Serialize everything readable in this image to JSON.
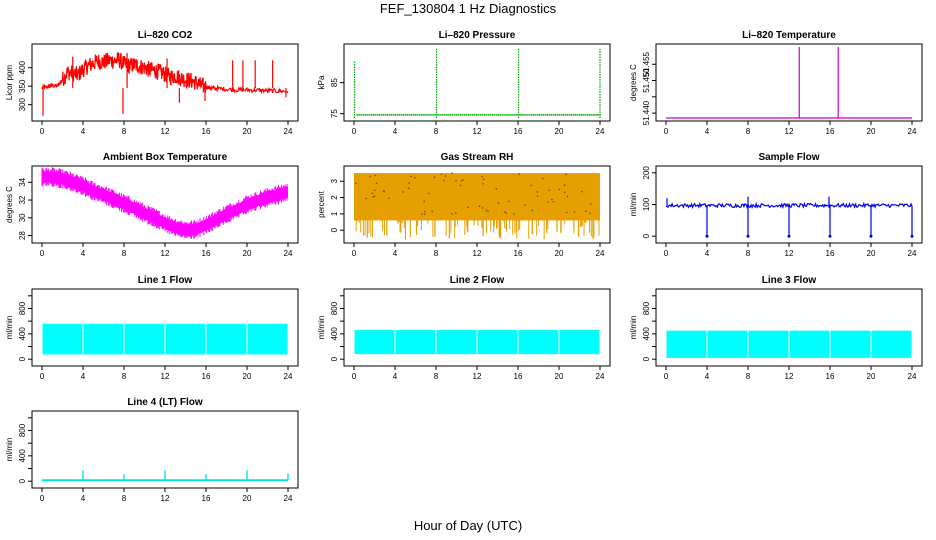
{
  "figure": {
    "title": "FEF_130804  1 Hz Diagnostics",
    "xlabel": "Hour of Day (UTC)"
  },
  "chart_data": [
    {
      "type": "line",
      "title": "Li–820 CO2",
      "ylabel": "Licor ppm",
      "xlim": [
        0,
        24
      ],
      "xticks": [
        0,
        4,
        8,
        12,
        16,
        20,
        24
      ],
      "ylim": [
        264,
        456
      ],
      "yticks": [
        300,
        350,
        400
      ],
      "color": "#ff0000",
      "style": "line",
      "series": [
        {
          "x": [
            0,
            0.5,
            1,
            1.5,
            2,
            2.5,
            3,
            3.5,
            4,
            4.5,
            5,
            5.5,
            6,
            6.5,
            7,
            7.5,
            8,
            8.5,
            9,
            9.5,
            10,
            10.5,
            11,
            11.5,
            12,
            12.5,
            13,
            13.5,
            14,
            14.5,
            15,
            15.5,
            16,
            16.5,
            17,
            18,
            19,
            20,
            21,
            22,
            23,
            24
          ],
          "y": [
            345,
            348,
            352,
            350,
            368,
            388,
            385,
            380,
            395,
            405,
            412,
            418,
            415,
            420,
            418,
            422,
            410,
            405,
            408,
            404,
            400,
            395,
            392,
            388,
            382,
            375,
            378,
            372,
            368,
            365,
            360,
            352,
            348,
            345,
            344,
            342,
            340,
            340,
            339,
            338,
            337,
            336
          ]
        }
      ],
      "spikes": [
        {
          "x": 0.1,
          "y": 270
        },
        {
          "x": 3,
          "y": 430
        },
        {
          "x": 7.9,
          "y": 275
        },
        {
          "x": 8.3,
          "y": 440
        },
        {
          "x": 12.2,
          "y": 425
        },
        {
          "x": 13.4,
          "y": 305
        },
        {
          "x": 15.9,
          "y": 310
        },
        {
          "x": 18.6,
          "y": 420
        },
        {
          "x": 19.6,
          "y": 420
        },
        {
          "x": 20.8,
          "y": 420
        },
        {
          "x": 22.5,
          "y": 420
        },
        {
          "x": 23.8,
          "y": 320
        }
      ]
    },
    {
      "type": "scatter",
      "title": "Li–820 Pressure",
      "ylabel": "kPa",
      "xlim": [
        0,
        24
      ],
      "xticks": [
        0,
        4,
        8,
        12,
        16,
        20,
        24
      ],
      "ylim": [
        73.6,
        96.5
      ],
      "yticks": [
        75,
        85
      ],
      "color": "#00aa00",
      "style": "dots",
      "series": [
        {
          "x": [
            0.3,
            24
          ],
          "y": [
            74.6,
            74.6
          ]
        }
      ],
      "spikes": [
        {
          "x": 0.05,
          "y": 92
        },
        {
          "x": 8.05,
          "y": 96
        },
        {
          "x": 16.05,
          "y": 96
        },
        {
          "x": 24.0,
          "y": 96
        }
      ]
    },
    {
      "type": "line",
      "title": "Li–820 Temperature",
      "ylabel": "degrees C",
      "xlim": [
        0,
        24
      ],
      "xticks": [
        0,
        4,
        8,
        12,
        16,
        20,
        24
      ],
      "ylim": [
        51.4385,
        51.4603
      ],
      "yticks": [
        51.44,
        51.445,
        51.45,
        51.455
      ],
      "yticklabels": [
        "51.440",
        "",
        "51.450",
        "51.455"
      ],
      "color": "#cc00cc",
      "style": "line",
      "series": [
        {
          "x": [
            0,
            24
          ],
          "y": [
            51.4385,
            51.4385
          ]
        }
      ],
      "spikes": [
        {
          "x": 13.0,
          "y": 51.4603
        },
        {
          "x": 16.8,
          "y": 51.4603
        }
      ]
    },
    {
      "type": "line",
      "title": "Ambient Box Temperature",
      "ylabel": "degrees C",
      "xlim": [
        0,
        24
      ],
      "xticks": [
        0,
        4,
        8,
        12,
        16,
        20,
        24
      ],
      "ylim": [
        27.5,
        35.5
      ],
      "yticks": [
        28,
        30,
        32,
        34
      ],
      "color": "#ff00ff",
      "style": "band",
      "band": 1.2,
      "series": [
        {
          "x": [
            0,
            1,
            2,
            3,
            4,
            5,
            6,
            7,
            8,
            9,
            10,
            11,
            12,
            13,
            14,
            15,
            16,
            17,
            18,
            19,
            20,
            21,
            22,
            23,
            24
          ],
          "y": [
            34.6,
            34.6,
            34.4,
            34.0,
            33.6,
            33.0,
            32.6,
            32.1,
            31.6,
            31.1,
            30.5,
            30.0,
            29.4,
            28.9,
            28.6,
            28.7,
            29.2,
            29.8,
            30.4,
            30.9,
            31.5,
            31.9,
            32.3,
            32.6,
            32.9
          ]
        }
      ]
    },
    {
      "type": "scatter",
      "title": "Gas Stream RH",
      "ylabel": "percent",
      "xlim": [
        0,
        24
      ],
      "xticks": [
        0,
        4,
        8,
        12,
        16,
        20,
        24
      ],
      "ylim": [
        -0.6,
        3.75
      ],
      "yticks": [
        0,
        1,
        2,
        3
      ],
      "color": "#e69f00",
      "style": "dense",
      "top": 3.5,
      "bottom": 0.6,
      "dips": [
        1.3,
        3.2,
        4.5,
        6.1,
        7.9,
        9.3,
        11.1,
        12.6,
        14.3,
        15.7,
        17.4,
        18.8,
        20.2,
        21.9,
        23.4
      ],
      "dipmin": -0.5,
      "series": [
        {
          "x": [
            0,
            24
          ],
          "y": [
            3.5,
            0.6
          ]
        }
      ]
    },
    {
      "type": "line",
      "title": "Sample Flow",
      "ylabel": "ml/min",
      "xlim": [
        0,
        24
      ],
      "xticks": [
        0,
        4,
        8,
        12,
        16,
        20,
        24
      ],
      "ylim": [
        -12,
        212
      ],
      "yticks": [
        0,
        100,
        200
      ],
      "color": "#0000ee",
      "style": "noisy",
      "noise": 6,
      "series": [
        {
          "x": [
            0,
            24
          ],
          "y": [
            97,
            97
          ]
        }
      ],
      "spikes": [
        {
          "x": 4,
          "y": 0
        },
        {
          "x": 8,
          "y": 0
        },
        {
          "x": 12,
          "y": 0
        },
        {
          "x": 16,
          "y": 0
        },
        {
          "x": 20,
          "y": 0
        },
        {
          "x": 24,
          "y": 0
        }
      ],
      "upspikes": [
        {
          "x": 0.1,
          "y": 120
        },
        {
          "x": 8,
          "y": 125
        },
        {
          "x": 15.9,
          "y": 125
        }
      ]
    },
    {
      "type": "area",
      "title": "Line 1 Flow",
      "ylabel": "ml/min",
      "xlim": [
        0,
        24
      ],
      "xticks": [
        0,
        4,
        8,
        12,
        16,
        20,
        24
      ],
      "ylim": [
        -60,
        1060
      ],
      "yticks": [
        0,
        200,
        400,
        600,
        800,
        1000
      ],
      "yticklabels": [
        "0",
        "",
        "400",
        "",
        "800",
        ""
      ],
      "color": "#00ffff",
      "style": "fillband",
      "top": 560,
      "bottom": 75,
      "gaps": [
        4,
        8,
        12,
        16,
        20
      ],
      "series": [
        {
          "x": [
            0,
            24
          ],
          "y": [
            560,
            75
          ]
        }
      ]
    },
    {
      "type": "area",
      "title": "Line 2 Flow",
      "ylabel": "ml/min",
      "xlim": [
        0,
        24
      ],
      "xticks": [
        0,
        4,
        8,
        12,
        16,
        20,
        24
      ],
      "ylim": [
        -60,
        1060
      ],
      "yticks": [
        0,
        200,
        400,
        600,
        800,
        1000
      ],
      "yticklabels": [
        "0",
        "",
        "400",
        "",
        "800",
        ""
      ],
      "color": "#00ffff",
      "style": "fillband",
      "top": 460,
      "bottom": 80,
      "gaps": [
        4,
        8,
        12,
        16,
        20
      ],
      "series": [
        {
          "x": [
            0,
            24
          ],
          "y": [
            460,
            80
          ]
        }
      ]
    },
    {
      "type": "area",
      "title": "Line 3 Flow",
      "ylabel": "ml/min",
      "xlim": [
        0,
        24
      ],
      "xticks": [
        0,
        4,
        8,
        12,
        16,
        20,
        24
      ],
      "ylim": [
        -60,
        1060
      ],
      "yticks": [
        0,
        200,
        400,
        600,
        800,
        1000
      ],
      "yticklabels": [
        "0",
        "",
        "400",
        "",
        "800",
        ""
      ],
      "color": "#00ffff",
      "style": "fillband",
      "top": 450,
      "bottom": 20,
      "gaps": [
        4,
        8,
        12,
        16,
        20
      ],
      "series": [
        {
          "x": [
            0,
            24
          ],
          "y": [
            450,
            20
          ]
        }
      ]
    },
    {
      "type": "line",
      "title": "Line 4 (LT) Flow",
      "ylabel": "ml/min",
      "xlim": [
        0,
        24
      ],
      "xticks": [
        0,
        4,
        8,
        12,
        16,
        20,
        24
      ],
      "ylim": [
        -60,
        1060
      ],
      "yticks": [
        0,
        200,
        400,
        600,
        800,
        1000
      ],
      "yticklabels": [
        "0",
        "",
        "400",
        "",
        "800",
        ""
      ],
      "color": "#00e5e5",
      "style": "baseline",
      "series": [
        {
          "x": [
            0,
            24
          ],
          "y": [
            15,
            15
          ]
        }
      ],
      "bumps": [
        {
          "x": 4,
          "y": 170
        },
        {
          "x": 8,
          "y": 110
        },
        {
          "x": 12,
          "y": 170
        },
        {
          "x": 16,
          "y": 110
        },
        {
          "x": 20,
          "y": 170
        },
        {
          "x": 24,
          "y": 120
        }
      ]
    }
  ]
}
